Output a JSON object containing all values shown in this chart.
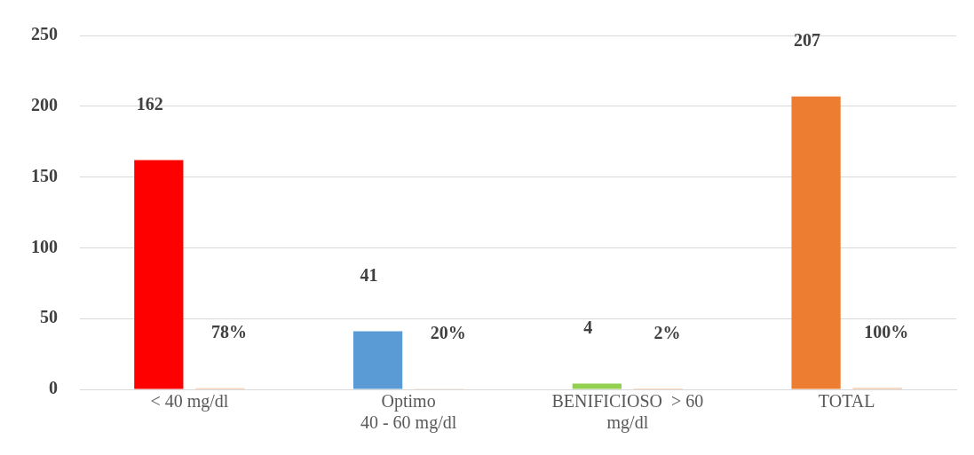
{
  "chart_data": {
    "type": "bar",
    "categories": [
      "< 40 mg/dl",
      "Optimo\n40 - 60 mg/dl",
      "BENIFICIOSO  > 60\nmg/dl",
      "TOTAL"
    ],
    "series": [
      {
        "colors": [
          "#ff0000",
          "#5b9bd5",
          "#92d050",
          "#ed7d31"
        ],
        "values": [
          162,
          41,
          4,
          207
        ],
        "value_labels": [
          "162",
          "41",
          "4",
          "207"
        ]
      },
      {
        "color": "#f4b183",
        "values": [
          0.78,
          0.2,
          0.02,
          1
        ],
        "value_labels": [
          "78%",
          "20%",
          "2%",
          "100%"
        ]
      }
    ],
    "ylim": [
      0,
      250
    ],
    "yticks": [
      0,
      50,
      100,
      150,
      200,
      250
    ],
    "grid": "y",
    "legend": false
  }
}
